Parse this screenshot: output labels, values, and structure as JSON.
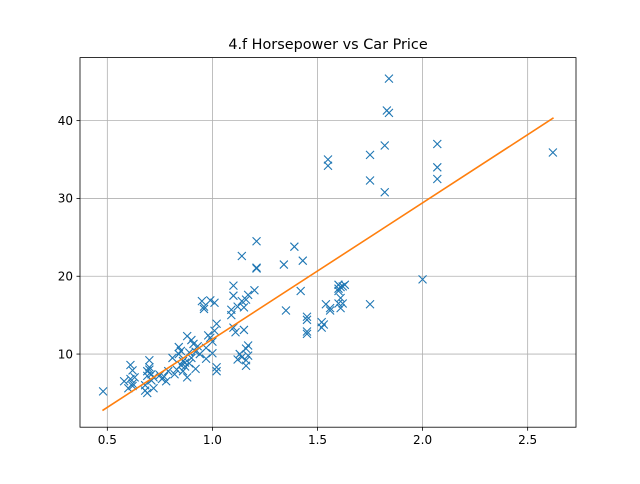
{
  "chart_data": {
    "type": "scatter",
    "title": "4.f Horsepower vs Car Price",
    "xlabel": "",
    "ylabel": "",
    "xlim": [
      0.37,
      2.73
    ],
    "ylim": [
      0.6,
      48.1
    ],
    "xticks": [
      0.5,
      1.0,
      1.5,
      2.0,
      2.5
    ],
    "xtick_labels": [
      "0.5",
      "1.0",
      "1.5",
      "2.0",
      "2.5"
    ],
    "yticks": [
      10,
      20,
      30,
      40
    ],
    "ytick_labels": [
      "10",
      "20",
      "30",
      "40"
    ],
    "grid": true,
    "legend": "none",
    "colors": {
      "points": "#1f77b4",
      "fit": "#ff7f0e"
    },
    "series": [
      {
        "kind": "points",
        "marker": "x",
        "points": [
          [
            0.48,
            5.2
          ],
          [
            0.58,
            6.5
          ],
          [
            0.6,
            5.6
          ],
          [
            0.61,
            6.8
          ],
          [
            0.62,
            5.9
          ],
          [
            0.61,
            8.6
          ],
          [
            0.62,
            7.9
          ],
          [
            0.63,
            7.0
          ],
          [
            0.62,
            6.2
          ],
          [
            0.68,
            5.3
          ],
          [
            0.68,
            6.0
          ],
          [
            0.69,
            5.0
          ],
          [
            0.69,
            7.2
          ],
          [
            0.69,
            7.8
          ],
          [
            0.7,
            9.2
          ],
          [
            0.7,
            8.3
          ],
          [
            0.71,
            7.4
          ],
          [
            0.71,
            6.6
          ],
          [
            0.72,
            5.6
          ],
          [
            0.72,
            7.0
          ],
          [
            0.7,
            8.0
          ],
          [
            0.75,
            7.3
          ],
          [
            0.76,
            6.8
          ],
          [
            0.77,
            7.1
          ],
          [
            0.78,
            6.5
          ],
          [
            0.79,
            7.8
          ],
          [
            0.81,
            9.5
          ],
          [
            0.82,
            7.4
          ],
          [
            0.83,
            8.0
          ],
          [
            0.84,
            10.9
          ],
          [
            0.84,
            10.0
          ],
          [
            0.85,
            10.4
          ],
          [
            0.85,
            8.6
          ],
          [
            0.86,
            7.8
          ],
          [
            0.86,
            9.1
          ],
          [
            0.87,
            8.4
          ],
          [
            0.87,
            8.9
          ],
          [
            0.88,
            12.3
          ],
          [
            0.88,
            7.0
          ],
          [
            0.89,
            8.8
          ],
          [
            0.89,
            10.2
          ],
          [
            0.9,
            9.5
          ],
          [
            0.9,
            11.8
          ],
          [
            0.91,
            11.3
          ],
          [
            0.92,
            10.3
          ],
          [
            0.92,
            8.1
          ],
          [
            0.93,
            11.0
          ],
          [
            0.94,
            10.0
          ],
          [
            0.95,
            16.8
          ],
          [
            0.96,
            15.8
          ],
          [
            0.96,
            16.1
          ],
          [
            0.97,
            9.4
          ],
          [
            0.97,
            10.8
          ],
          [
            0.98,
            12.4
          ],
          [
            0.99,
            12.1
          ],
          [
            0.99,
            16.9
          ],
          [
            1.0,
            10.1
          ],
          [
            1.0,
            11.6
          ],
          [
            1.01,
            16.6
          ],
          [
            1.01,
            13.0
          ],
          [
            1.02,
            8.3
          ],
          [
            1.02,
            7.8
          ],
          [
            1.02,
            13.9
          ],
          [
            1.09,
            15.7
          ],
          [
            1.09,
            15.0
          ],
          [
            1.1,
            18.8
          ],
          [
            1.1,
            17.5
          ],
          [
            1.1,
            13.4
          ],
          [
            1.11,
            12.8
          ],
          [
            1.12,
            9.3
          ],
          [
            1.12,
            16.1
          ],
          [
            1.13,
            10.0
          ],
          [
            1.14,
            9.6
          ],
          [
            1.14,
            16.8
          ],
          [
            1.14,
            22.6
          ],
          [
            1.15,
            13.1
          ],
          [
            1.15,
            16.0
          ],
          [
            1.16,
            17.0
          ],
          [
            1.16,
            10.7
          ],
          [
            1.16,
            9.2
          ],
          [
            1.16,
            8.5
          ],
          [
            1.17,
            9.8
          ],
          [
            1.17,
            11.1
          ],
          [
            1.17,
            17.6
          ],
          [
            1.2,
            18.2
          ],
          [
            1.21,
            24.5
          ],
          [
            1.21,
            21.1
          ],
          [
            1.21,
            21.0
          ],
          [
            1.34,
            21.5
          ],
          [
            1.35,
            15.6
          ],
          [
            1.39,
            23.8
          ],
          [
            1.42,
            18.1
          ],
          [
            1.43,
            22.0
          ],
          [
            1.45,
            14.8
          ],
          [
            1.45,
            12.9
          ],
          [
            1.45,
            14.4
          ],
          [
            1.45,
            12.6
          ],
          [
            1.52,
            13.4
          ],
          [
            1.52,
            14.1
          ],
          [
            1.53,
            13.8
          ],
          [
            1.54,
            16.4
          ],
          [
            1.55,
            35.0
          ],
          [
            1.55,
            34.2
          ],
          [
            1.56,
            15.6
          ],
          [
            1.56,
            15.9
          ],
          [
            1.6,
            16.5
          ],
          [
            1.6,
            18.4
          ],
          [
            1.6,
            18.9
          ],
          [
            1.6,
            18.1
          ],
          [
            1.61,
            18.6
          ],
          [
            1.61,
            17.2
          ],
          [
            1.61,
            15.9
          ],
          [
            1.62,
            16.5
          ],
          [
            1.62,
            18.7
          ],
          [
            1.63,
            18.9
          ],
          [
            1.75,
            35.6
          ],
          [
            1.75,
            32.3
          ],
          [
            1.75,
            16.4
          ],
          [
            1.82,
            36.8
          ],
          [
            1.82,
            30.8
          ],
          [
            1.83,
            41.3
          ],
          [
            1.84,
            45.4
          ],
          [
            1.84,
            41.0
          ],
          [
            2.0,
            19.6
          ],
          [
            2.07,
            37.0
          ],
          [
            2.07,
            34.0
          ],
          [
            2.07,
            32.5
          ],
          [
            2.62,
            35.9
          ]
        ]
      },
      {
        "kind": "line",
        "points": [
          [
            0.48,
            2.8
          ],
          [
            2.62,
            40.3
          ]
        ]
      }
    ]
  }
}
